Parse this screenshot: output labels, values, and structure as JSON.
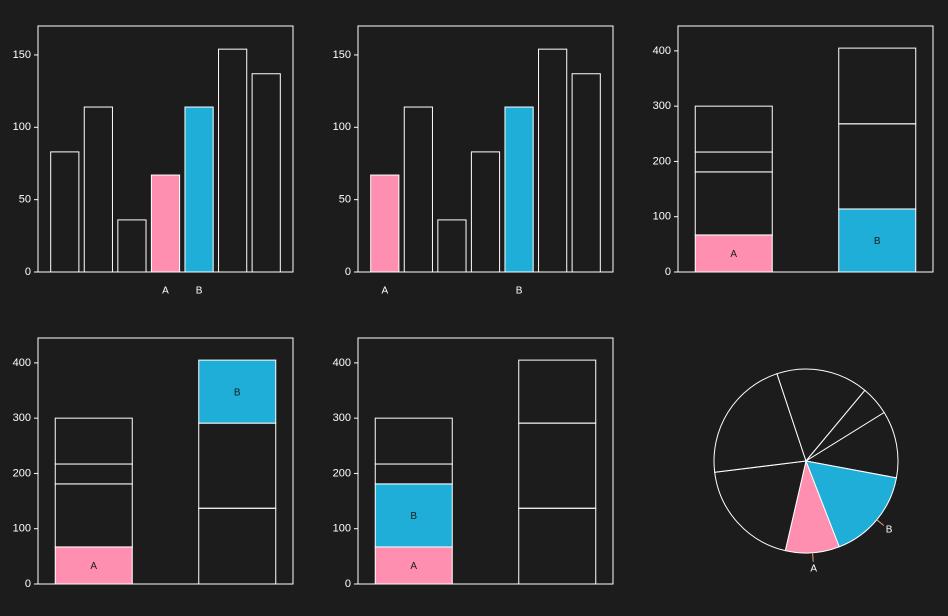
{
  "colors": {
    "background": "#1c1c1c",
    "stroke": "#ffffff",
    "highlight_a": "#ff8fb0",
    "highlight_b": "#1eaed8",
    "label_dark": "#1c1c1c"
  },
  "chart_data": [
    {
      "type": "bar",
      "title": "",
      "ylim": [
        0,
        170
      ],
      "yticks": [
        0,
        50,
        100,
        150
      ],
      "values": [
        83,
        114,
        36,
        67,
        114,
        154,
        137
      ],
      "marks": [
        "",
        "",
        "",
        "A",
        "B",
        "",
        ""
      ]
    },
    {
      "type": "bar",
      "title": "",
      "ylim": [
        0,
        170
      ],
      "yticks": [
        0,
        50,
        100,
        150
      ],
      "values": [
        67,
        114,
        36,
        83,
        114,
        154,
        137
      ],
      "marks": [
        "A",
        "",
        "",
        "",
        "B",
        "",
        ""
      ]
    },
    {
      "type": "stacked-bar",
      "title": "",
      "ylim": [
        0,
        445
      ],
      "yticks": [
        0,
        100,
        200,
        300,
        400
      ],
      "stacks": [
        {
          "segments": [
            67,
            114,
            36,
            83
          ],
          "marks": [
            "A",
            "",
            "",
            ""
          ]
        },
        {
          "segments": [
            114,
            154,
            137
          ],
          "marks": [
            "B",
            "",
            ""
          ]
        }
      ]
    },
    {
      "type": "stacked-bar",
      "title": "",
      "ylim": [
        0,
        445
      ],
      "yticks": [
        0,
        100,
        200,
        300,
        400
      ],
      "stacks": [
        {
          "segments": [
            67,
            114,
            36,
            83
          ],
          "marks": [
            "A",
            "",
            "",
            ""
          ]
        },
        {
          "segments": [
            137,
            154,
            114
          ],
          "marks": [
            "",
            "",
            "B"
          ]
        }
      ]
    },
    {
      "type": "stacked-bar",
      "title": "",
      "ylim": [
        0,
        445
      ],
      "yticks": [
        0,
        100,
        200,
        300,
        400
      ],
      "stacks": [
        {
          "segments": [
            67,
            114,
            36,
            83
          ],
          "marks": [
            "A",
            "B",
            "",
            ""
          ]
        },
        {
          "segments": [
            137,
            154,
            114
          ],
          "marks": [
            "",
            "",
            ""
          ]
        }
      ]
    },
    {
      "type": "pie",
      "title": "",
      "values": [
        67,
        137,
        154,
        114,
        36,
        83,
        114
      ],
      "marks": [
        "A",
        "",
        "",
        "",
        "",
        "",
        "B"
      ]
    }
  ]
}
